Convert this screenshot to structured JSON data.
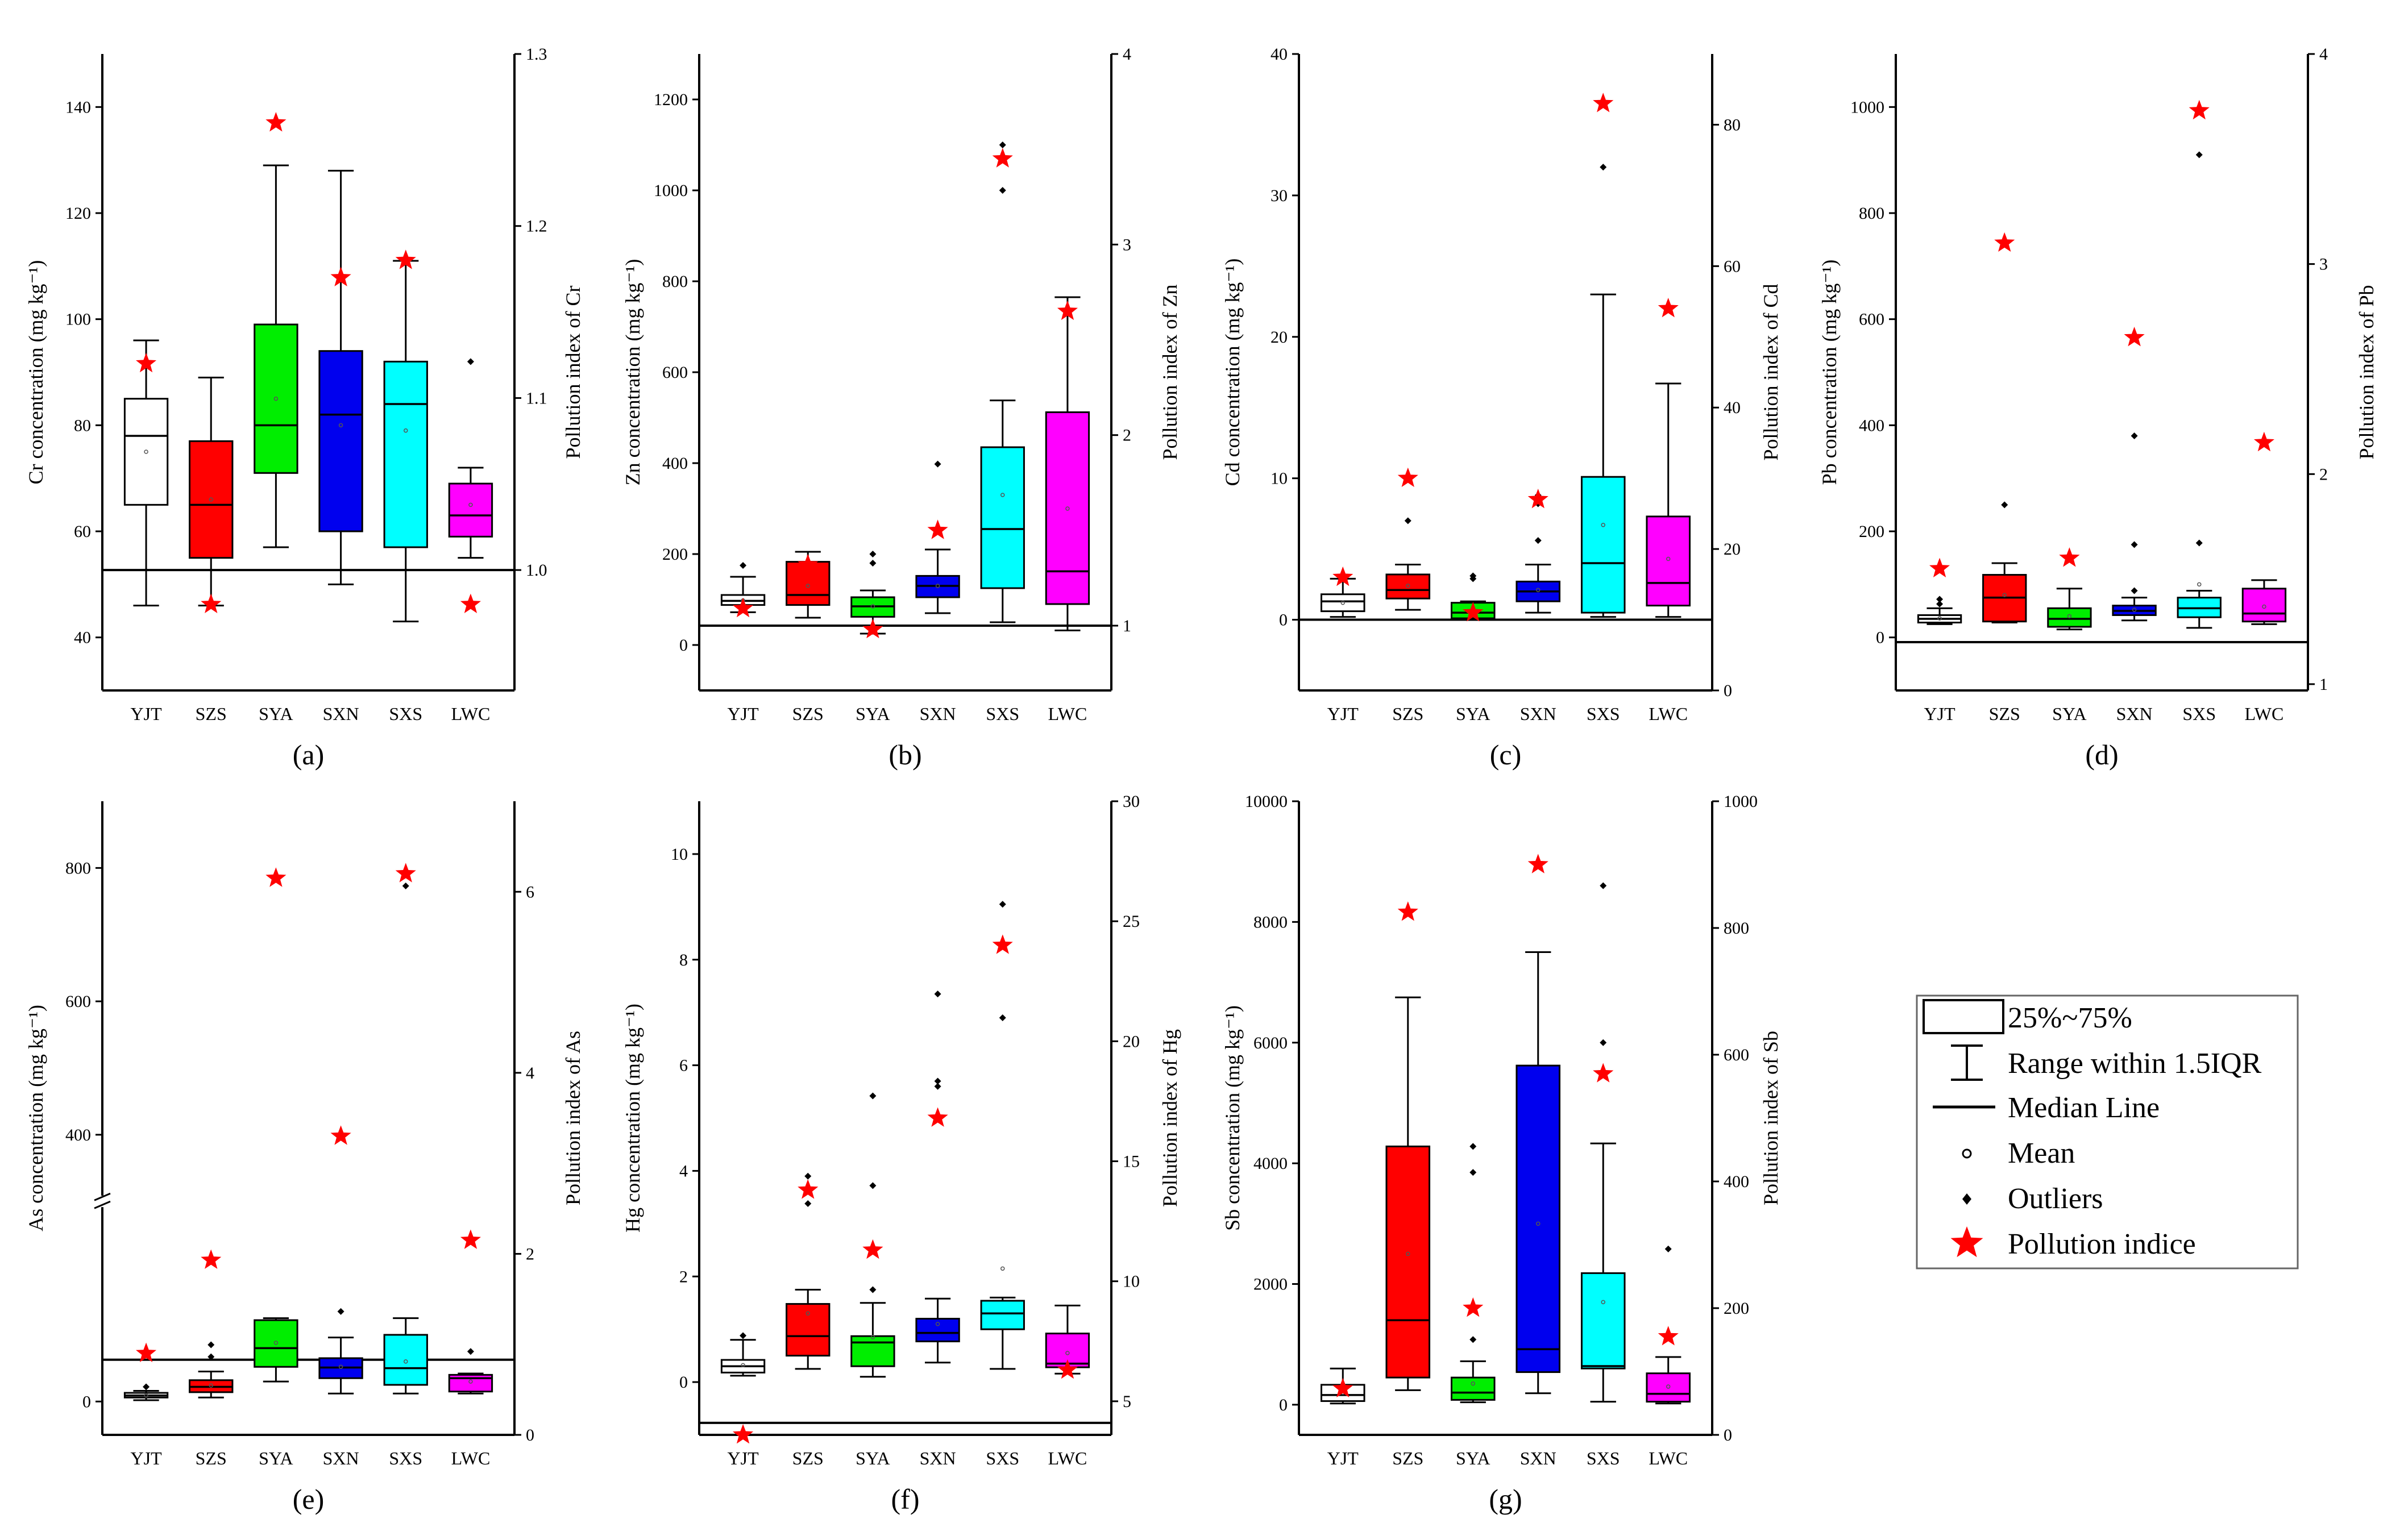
{
  "categories": [
    "YJT",
    "SZS",
    "SYA",
    "SXN",
    "SXS",
    "LWC"
  ],
  "colors": [
    "#ffffff",
    "#ff0000",
    "#00ee00",
    "#0000ee",
    "#00ffff",
    "#ff00ff"
  ],
  "legend": {
    "box": "25%~75%",
    "range": "Range within 1.5IQR",
    "median": "Median Line",
    "mean": "Mean",
    "outliers": "Outliers",
    "pollution": "Pollution indice"
  },
  "chart_data": [
    {
      "type": "box",
      "panel": "(a)",
      "element": "Cr",
      "ylabel": "Cr concentration (mg kg⁻¹)",
      "y2label": "Pollution index of Cr",
      "ylim": [
        30,
        150
      ],
      "y2lim": [
        0.93,
        1.3
      ],
      "yticks": [
        40,
        60,
        80,
        100,
        120,
        140
      ],
      "y2ticks": [
        1.0,
        1.1,
        1.2,
        1.3
      ],
      "y2tickLabels": [
        "1.0",
        "1.1",
        "1.2",
        "1.3"
      ],
      "refLine": 1.0,
      "boxes": [
        {
          "q1": 65,
          "med": 78,
          "q3": 85,
          "lo": 46,
          "hi": 96,
          "mean": 75,
          "out": []
        },
        {
          "q1": 55,
          "med": 65,
          "q3": 77,
          "lo": 46,
          "hi": 89,
          "mean": 66,
          "out": []
        },
        {
          "q1": 71,
          "med": 80,
          "q3": 99,
          "lo": 57,
          "hi": 129,
          "mean": 85,
          "out": []
        },
        {
          "q1": 60,
          "med": 82,
          "q3": 94,
          "lo": 50,
          "hi": 128,
          "mean": 80,
          "out": []
        },
        {
          "q1": 57,
          "med": 84,
          "q3": 92,
          "lo": 43,
          "hi": 111,
          "mean": 79,
          "out": []
        },
        {
          "q1": 59,
          "med": 63,
          "q3": 69,
          "lo": 55,
          "hi": 72,
          "mean": 65,
          "out": [
            92
          ]
        }
      ],
      "pi": [
        1.12,
        0.98,
        1.26,
        1.17,
        1.18,
        0.98
      ]
    },
    {
      "type": "box",
      "panel": "(b)",
      "element": "Zn",
      "ylabel": "Zn concentration (mg kg⁻¹)",
      "y2label": "Pollution index of Zn",
      "ylim": [
        -100,
        1300
      ],
      "y2lim": [
        0.66,
        4
      ],
      "yticks": [
        0,
        200,
        400,
        600,
        800,
        1000,
        1200
      ],
      "y2ticks": [
        1,
        2,
        3,
        4
      ],
      "y2tickLabels": [
        "1",
        "2",
        "3",
        "4"
      ],
      "refLine": 1,
      "boxes": [
        {
          "q1": 88,
          "med": 97,
          "q3": 110,
          "lo": 72,
          "hi": 150,
          "mean": 98,
          "out": [
            175
          ]
        },
        {
          "q1": 88,
          "med": 110,
          "q3": 183,
          "lo": 60,
          "hi": 205,
          "mean": 130,
          "out": []
        },
        {
          "q1": 62,
          "med": 85,
          "q3": 105,
          "lo": 25,
          "hi": 120,
          "mean": 85,
          "out": [
            180,
            200
          ]
        },
        {
          "q1": 105,
          "med": 130,
          "q3": 152,
          "lo": 70,
          "hi": 210,
          "mean": 130,
          "out": [
            398
          ]
        },
        {
          "q1": 125,
          "med": 255,
          "q3": 435,
          "lo": 50,
          "hi": 538,
          "mean": 330,
          "out": [
            1000,
            1100
          ]
        },
        {
          "q1": 90,
          "med": 162,
          "q3": 512,
          "lo": 32,
          "hi": 765,
          "mean": 300,
          "out": []
        }
      ],
      "pi": [
        1.09,
        1.32,
        0.98,
        1.5,
        3.45,
        2.65
      ]
    },
    {
      "type": "box",
      "panel": "(c)",
      "element": "Cd",
      "ylabel": "Cd concentration (mg kg⁻¹)",
      "y2label": "Pollution index of Cd",
      "ylim": [
        -5,
        40
      ],
      "y2lim": [
        0,
        90
      ],
      "yticks": [
        0,
        10,
        20,
        30,
        40
      ],
      "y2ticks": [
        0,
        20,
        40,
        60,
        80
      ],
      "y2tickLabels": [
        "0",
        "20",
        "40",
        "60",
        "80"
      ],
      "refLine": 10,
      "boxes": [
        {
          "q1": 0.6,
          "med": 1.3,
          "q3": 1.8,
          "lo": 0.2,
          "hi": 2.9,
          "mean": 1.2,
          "out": []
        },
        {
          "q1": 1.5,
          "med": 2.1,
          "q3": 3.2,
          "lo": 0.7,
          "hi": 3.9,
          "mean": 2.4,
          "out": [
            7.0
          ]
        },
        {
          "q1": 0.1,
          "med": 0.5,
          "q3": 1.2,
          "lo": 0.05,
          "hi": 1.3,
          "mean": 0.6,
          "out": [
            2.9,
            3.1
          ]
        },
        {
          "q1": 1.3,
          "med": 2.0,
          "q3": 2.7,
          "lo": 0.5,
          "hi": 3.9,
          "mean": 2.1,
          "out": [
            5.6,
            8.2,
            8.8
          ]
        },
        {
          "q1": 0.5,
          "med": 4.0,
          "q3": 10.1,
          "lo": 0.2,
          "hi": 23,
          "mean": 6.7,
          "out": [
            32
          ]
        },
        {
          "q1": 1.0,
          "med": 2.6,
          "q3": 7.3,
          "lo": 0.2,
          "hi": 16.7,
          "mean": 4.3,
          "out": []
        }
      ],
      "pi": [
        16,
        30,
        11,
        27,
        83,
        54
      ]
    },
    {
      "type": "box",
      "panel": "(d)",
      "element": "Pb",
      "ylabel": "Pb concentration (mg kg⁻¹)",
      "y2label": "Pollution index of Pb",
      "ylim": [
        -100,
        1100
      ],
      "y2lim": [
        0.97,
        4
      ],
      "yticks": [
        0,
        200,
        400,
        600,
        800,
        1000
      ],
      "y2ticks": [
        1,
        2,
        3,
        4
      ],
      "y2tickLabels": [
        "1",
        "2",
        "3",
        "4"
      ],
      "refLine": 1.2,
      "boxes": [
        {
          "q1": 28,
          "med": 35,
          "q3": 42,
          "lo": 25,
          "hi": 55,
          "mean": 36,
          "out": [
            63,
            72
          ]
        },
        {
          "q1": 30,
          "med": 75,
          "q3": 118,
          "lo": 28,
          "hi": 140,
          "mean": 80,
          "out": [
            250
          ]
        },
        {
          "q1": 20,
          "med": 35,
          "q3": 55,
          "lo": 15,
          "hi": 92,
          "mean": 40,
          "out": []
        },
        {
          "q1": 42,
          "med": 50,
          "q3": 60,
          "lo": 32,
          "hi": 75,
          "mean": 52,
          "out": [
            88,
            175,
            380
          ]
        },
        {
          "q1": 38,
          "med": 55,
          "q3": 75,
          "lo": 18,
          "hi": 88,
          "mean": 100,
          "out": [
            178,
            910
          ]
        },
        {
          "q1": 30,
          "med": 45,
          "q3": 92,
          "lo": 25,
          "hi": 108,
          "mean": 58,
          "out": []
        }
      ],
      "pi": [
        1.55,
        3.1,
        1.6,
        2.65,
        3.73,
        2.15
      ]
    },
    {
      "type": "box",
      "panel": "(e)",
      "element": "As",
      "ylabel": "As concentration (mg kg⁻¹)",
      "y2label": "Pollution index of As",
      "axisBreak": true,
      "ylim": [
        -50,
        900
      ],
      "y2lim": [
        0,
        7
      ],
      "yticks": [
        0,
        400,
        600,
        800
      ],
      "y2ticks": [
        0,
        2,
        4,
        6
      ],
      "y2tickLabels": [
        "0",
        "2",
        "4",
        "6"
      ],
      "refLine": 0.83,
      "boxes": [
        {
          "q1": 6,
          "med": 9,
          "q3": 13,
          "lo": 2,
          "hi": 16,
          "mean": 9,
          "out": [
            22
          ]
        },
        {
          "q1": 14,
          "med": 22,
          "q3": 32,
          "lo": 6,
          "hi": 45,
          "mean": 24,
          "out": [
            67,
            85
          ]
        },
        {
          "q1": 52,
          "med": 80,
          "q3": 122,
          "lo": 30,
          "hi": 125,
          "mean": 88,
          "out": []
        },
        {
          "q1": 35,
          "med": 51,
          "q3": 65,
          "lo": 12,
          "hi": 96,
          "mean": 52,
          "out": [
            135
          ]
        },
        {
          "q1": 25,
          "med": 50,
          "q3": 100,
          "lo": 12,
          "hi": 125,
          "mean": 60,
          "out": [
            773
          ]
        },
        {
          "q1": 15,
          "med": 35,
          "q3": 40,
          "lo": 12,
          "hi": 42,
          "mean": 30,
          "out": [
            75
          ]
        }
      ],
      "pi": [
        0.9,
        1.93,
        6.15,
        3.3,
        6.2,
        2.15
      ]
    },
    {
      "type": "box",
      "panel": "(f)",
      "element": "Hg",
      "ylabel": "Hg concentration (mg kg⁻¹)",
      "y2label": "Pollution index of Hg",
      "ylim": [
        -1,
        11
      ],
      "y2lim": [
        3.6,
        30
      ],
      "yticks": [
        0,
        2,
        4,
        6,
        8,
        10
      ],
      "y2ticks": [
        5,
        10,
        15,
        20,
        25,
        30
      ],
      "y2tickLabels": [
        "5",
        "10",
        "15",
        "20",
        "25",
        "30"
      ],
      "refLine": 4.1,
      "boxes": [
        {
          "q1": 0.18,
          "med": 0.3,
          "q3": 0.42,
          "lo": 0.12,
          "hi": 0.8,
          "mean": 0.32,
          "out": [
            0.88
          ]
        },
        {
          "q1": 0.5,
          "med": 0.87,
          "q3": 1.48,
          "lo": 0.25,
          "hi": 1.75,
          "mean": 1.3,
          "out": [
            3.38,
            3.9
          ]
        },
        {
          "q1": 0.3,
          "med": 0.75,
          "q3": 0.87,
          "lo": 0.1,
          "hi": 1.5,
          "mean": 0.85,
          "out": [
            1.75,
            3.72,
            5.42
          ]
        },
        {
          "q1": 0.77,
          "med": 0.93,
          "q3": 1.2,
          "lo": 0.37,
          "hi": 1.58,
          "mean": 1.1,
          "out": [
            5.6,
            5.7,
            7.35
          ]
        },
        {
          "q1": 1.0,
          "med": 1.3,
          "q3": 1.54,
          "lo": 0.25,
          "hi": 1.6,
          "mean": 2.15,
          "out": [
            6.9,
            9.05
          ]
        },
        {
          "q1": 0.28,
          "med": 0.35,
          "q3": 0.92,
          "lo": 0.16,
          "hi": 1.45,
          "mean": 0.55,
          "out": []
        }
      ],
      "pi": [
        3.6,
        13.8,
        11.3,
        16.8,
        24,
        6.3
      ]
    },
    {
      "type": "box",
      "panel": "(g)",
      "element": "Sb",
      "ylabel": "Sb concentration (mg kg⁻¹)",
      "y2label": "Pollution index of Sb",
      "ylim": [
        -500,
        10000
      ],
      "y2lim": [
        0,
        1000
      ],
      "yticks": [
        0,
        2000,
        4000,
        6000,
        8000,
        10000
      ],
      "y2ticks": [
        0,
        200,
        400,
        600,
        800,
        1000
      ],
      "y2tickLabels": [
        "0",
        "200",
        "400",
        "600",
        "800",
        "1000"
      ],
      "refLine": 0,
      "boxes": [
        {
          "q1": 60,
          "med": 160,
          "q3": 330,
          "lo": 20,
          "hi": 600,
          "mean": 200,
          "out": []
        },
        {
          "q1": 450,
          "med": 1400,
          "q3": 4280,
          "lo": 240,
          "hi": 6750,
          "mean": 2500,
          "out": []
        },
        {
          "q1": 80,
          "med": 200,
          "q3": 450,
          "lo": 40,
          "hi": 720,
          "mean": 350,
          "out": [
            1080,
            3850,
            4280
          ]
        },
        {
          "q1": 540,
          "med": 920,
          "q3": 5620,
          "lo": 190,
          "hi": 7500,
          "mean": 3000,
          "out": []
        },
        {
          "q1": 600,
          "med": 640,
          "q3": 2180,
          "lo": 50,
          "hi": 4330,
          "mean": 1700,
          "out": [
            6000,
            8600
          ]
        },
        {
          "q1": 50,
          "med": 180,
          "q3": 520,
          "lo": 20,
          "hi": 790,
          "mean": 300,
          "out": [
            2580
          ]
        }
      ],
      "pi": [
        73,
        825,
        200,
        900,
        570,
        155
      ]
    }
  ]
}
